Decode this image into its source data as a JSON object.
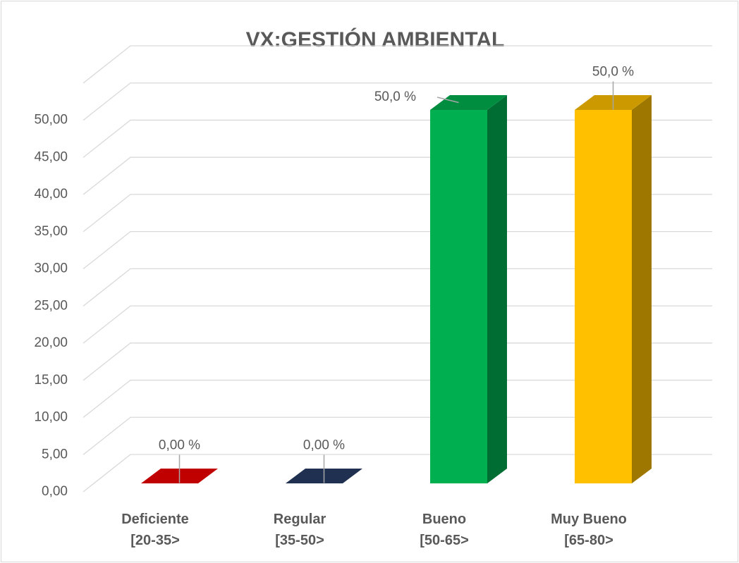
{
  "chart_data": {
    "type": "bar3d",
    "title": "VX:GESTIÓN AMBIENTAL",
    "categories": [
      "Deficiente\n[20-35>",
      "Regular\n[35-50>",
      "Bueno\n[50-65>",
      "Muy Bueno\n[65-80>"
    ],
    "values": [
      0,
      0,
      50,
      50
    ],
    "value_labels": [
      "0,00 %",
      "0,00 %",
      "50,0 %",
      "50,0 %"
    ],
    "colors": [
      "#c00000",
      "#1f3050",
      "#00b050",
      "#ffc000"
    ],
    "ylim": [
      0,
      55
    ],
    "yticks": [
      {
        "value": 0,
        "label": "0,00"
      },
      {
        "value": 5,
        "label": "5,00"
      },
      {
        "value": 10,
        "label": "10,00"
      },
      {
        "value": 15,
        "label": "15,00"
      },
      {
        "value": 20,
        "label": "20,00"
      },
      {
        "value": 25,
        "label": "25,00"
      },
      {
        "value": 30,
        "label": "30,00"
      },
      {
        "value": 35,
        "label": "35,00"
      },
      {
        "value": 40,
        "label": "40,00"
      },
      {
        "value": 45,
        "label": "45,00"
      },
      {
        "value": 50,
        "label": "50,00"
      }
    ],
    "grid": true
  }
}
